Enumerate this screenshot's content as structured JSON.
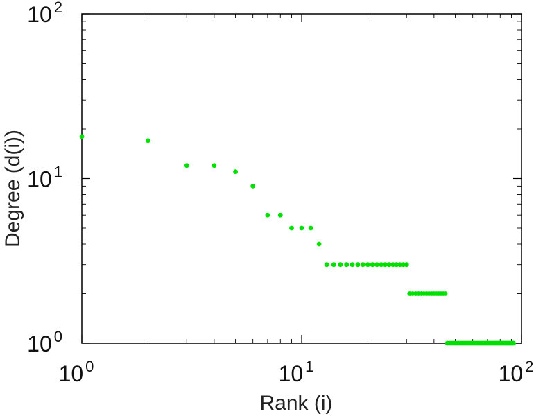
{
  "chart_data": {
    "type": "scatter",
    "xlabel": "Rank (i)",
    "ylabel": "Degree (d(i))",
    "xscale": "log",
    "yscale": "log",
    "xlim": [
      1,
      100
    ],
    "ylim": [
      1,
      100
    ],
    "x_tick_labels": [
      {
        "base": "10",
        "exp": "0"
      },
      {
        "base": "10",
        "exp": "1"
      },
      {
        "base": "10",
        "exp": "2"
      }
    ],
    "y_tick_labels": [
      {
        "base": "10",
        "exp": "0"
      },
      {
        "base": "10",
        "exp": "1"
      },
      {
        "base": "10",
        "exp": "2"
      }
    ],
    "grid": false,
    "marker_color": "#00e000",
    "series": [
      {
        "x": [
          1,
          2,
          3,
          4,
          5,
          6,
          7,
          8,
          9,
          10,
          11,
          12,
          13,
          14,
          15,
          16,
          17,
          18,
          19,
          20,
          21,
          22,
          23,
          24,
          25,
          26,
          27,
          28,
          29,
          30,
          31,
          32,
          33,
          34,
          35,
          36,
          37,
          38,
          39,
          40,
          41,
          42,
          43,
          44,
          45,
          46,
          47,
          48,
          49,
          50,
          51,
          52,
          53,
          54,
          55,
          56,
          57,
          58,
          59,
          60,
          61,
          62,
          63,
          64,
          65,
          66,
          67,
          68,
          69,
          70,
          71,
          72,
          73,
          74,
          75,
          76,
          77,
          78,
          79,
          80,
          81,
          82,
          83,
          84,
          85,
          86,
          87,
          88,
          89,
          90,
          91,
          92
        ],
        "y": [
          18,
          17,
          12,
          12,
          11,
          9,
          6,
          6,
          5,
          5,
          5,
          4,
          3,
          3,
          3,
          3,
          3,
          3,
          3,
          3,
          3,
          3,
          3,
          3,
          3,
          3,
          3,
          3,
          3,
          3,
          2,
          2,
          2,
          2,
          2,
          2,
          2,
          2,
          2,
          2,
          2,
          2,
          2,
          2,
          2,
          1,
          1,
          1,
          1,
          1,
          1,
          1,
          1,
          1,
          1,
          1,
          1,
          1,
          1,
          1,
          1,
          1,
          1,
          1,
          1,
          1,
          1,
          1,
          1,
          1,
          1,
          1,
          1,
          1,
          1,
          1,
          1,
          1,
          1,
          1,
          1,
          1,
          1,
          1,
          1,
          1,
          1,
          1,
          1,
          1,
          1,
          1
        ]
      }
    ]
  }
}
